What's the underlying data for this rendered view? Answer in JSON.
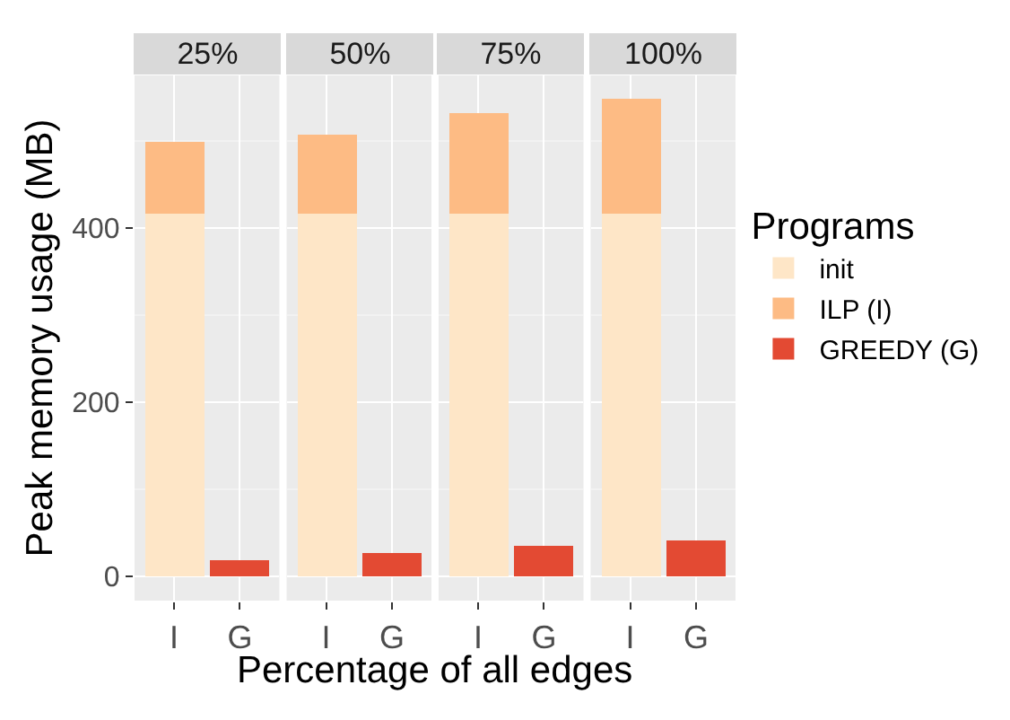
{
  "chart_data": [
    {
      "type": "bar",
      "title": "25%",
      "xlabel": "Percentage of all edges",
      "ylabel": "Peak memory usage (MB)",
      "legend_title": "Programs",
      "legend": "right",
      "stacked": true,
      "grid": true,
      "categories": [
        "I",
        "G"
      ],
      "ylim": [
        -28,
        575
      ],
      "yticks": [
        0,
        200,
        400
      ],
      "series": [
        {
          "name": "init",
          "color": "#fee6c7",
          "values": [
            417,
            null
          ]
        },
        {
          "name": "ILP (I)",
          "color": "#fdbb84",
          "values": [
            82,
            null
          ]
        },
        {
          "name": "GREEDY (G)",
          "color": "#e34a33",
          "values": [
            null,
            18
          ]
        }
      ]
    },
    {
      "type": "bar",
      "title": "50%",
      "stacked": true,
      "grid": true,
      "categories": [
        "I",
        "G"
      ],
      "ylim": [
        -28,
        575
      ],
      "yticks": [
        0,
        200,
        400
      ],
      "tick_labels": "x",
      "series": [
        {
          "name": "init",
          "color": "#fee6c7",
          "values": [
            417,
            null
          ]
        },
        {
          "name": "ILP (I)",
          "color": "#fdbb84",
          "values": [
            91,
            null
          ]
        },
        {
          "name": "GREEDY (G)",
          "color": "#e34a33",
          "values": [
            null,
            27
          ]
        }
      ]
    },
    {
      "type": "bar",
      "title": "75%",
      "stacked": true,
      "grid": true,
      "categories": [
        "I",
        "G"
      ],
      "ylim": [
        -28,
        575
      ],
      "yticks": [
        0,
        200,
        400
      ],
      "tick_labels": "x",
      "series": [
        {
          "name": "init",
          "color": "#fee6c7",
          "values": [
            417,
            null
          ]
        },
        {
          "name": "ILP (I)",
          "color": "#fdbb84",
          "values": [
            114,
            null
          ]
        },
        {
          "name": "GREEDY (G)",
          "color": "#e34a33",
          "values": [
            null,
            35
          ]
        }
      ]
    },
    {
      "type": "bar",
      "title": "100%",
      "stacked": true,
      "grid": true,
      "categories": [
        "I",
        "G"
      ],
      "ylim": [
        -28,
        575
      ],
      "yticks": [
        0,
        200,
        400
      ],
      "tick_labels": "x",
      "series": [
        {
          "name": "init",
          "color": "#fee6c7",
          "values": [
            417,
            null
          ]
        },
        {
          "name": "ILP (I)",
          "color": "#fdbb84",
          "values": [
            132,
            null
          ]
        },
        {
          "name": "GREEDY (G)",
          "color": "#e34a33",
          "values": [
            null,
            42
          ]
        }
      ]
    }
  ]
}
